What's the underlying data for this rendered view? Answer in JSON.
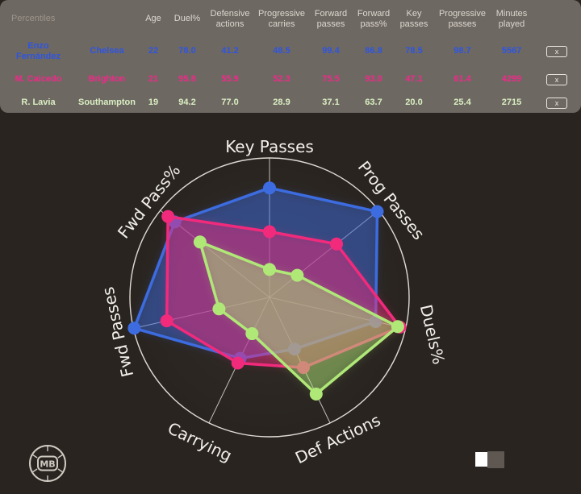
{
  "table": {
    "corner_label": "Percentiles",
    "columns": [
      "Age",
      "Duel%",
      "Defensive actions",
      "Progressive carries",
      "Forward passes",
      "Forward pass%",
      "Key passes",
      "Progressive passes",
      "Minutes played"
    ],
    "remove_label": "x",
    "rows": [
      {
        "name": "Enzo Fernández",
        "team": "Chelsea",
        "color": "#2e55e0",
        "values": [
          "22",
          "78.0",
          "41.2",
          "48.5",
          "99.4",
          "86.8",
          "78.5",
          "98.7",
          "5567"
        ]
      },
      {
        "name": "M. Caicedo",
        "team": "Brighton",
        "color": "#f0298a",
        "values": [
          "21",
          "95.8",
          "55.9",
          "52.3",
          "75.5",
          "93.0",
          "47.1",
          "61.4",
          "4299"
        ]
      },
      {
        "name": "R. Lavia",
        "team": "Southampton",
        "color": "#d9efc2",
        "values": [
          "19",
          "94.2",
          "77.0",
          "28.9",
          "37.1",
          "63.7",
          "20.0",
          "25.4",
          "2715"
        ]
      }
    ]
  },
  "chart_data": {
    "type": "radar",
    "categories": [
      "Key Passes",
      "Prog Passes",
      "Duels%",
      "Def Actions",
      "Carrying",
      "Fwd Passes",
      "Fwd Pass%"
    ],
    "series": [
      {
        "name": "Enzo Fernández",
        "color": "#3c6ce0",
        "values": [
          78.5,
          98.7,
          78.0,
          41.2,
          48.5,
          99.4,
          86.8
        ]
      },
      {
        "name": "M. Caicedo",
        "color": "#f22a7c",
        "values": [
          47.1,
          61.4,
          95.8,
          55.9,
          52.3,
          75.5,
          93.0
        ]
      },
      {
        "name": "R. Lavia",
        "color": "#b0e878",
        "values": [
          20.0,
          25.4,
          94.2,
          77.0,
          28.9,
          37.1,
          63.7
        ]
      }
    ],
    "rmax": 100,
    "grid": "outer-circle-and-spokes",
    "legend": "none"
  },
  "footer": {
    "logo_text": "MB",
    "toggle": {
      "left_color": "#ffffff",
      "right_color": "#5f5852"
    }
  }
}
